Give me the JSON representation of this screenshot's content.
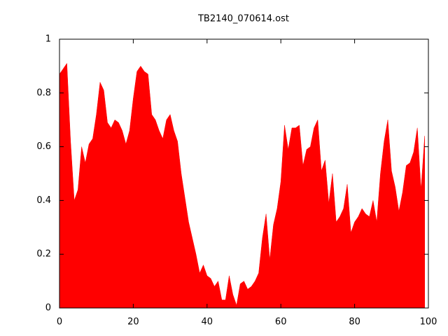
{
  "chart_data": {
    "type": "area",
    "title": "TB2140_070614.ost",
    "color": "#ff0000",
    "x": [
      0,
      1,
      2,
      3,
      4,
      5,
      6,
      7,
      8,
      9,
      10,
      11,
      12,
      13,
      14,
      15,
      16,
      17,
      18,
      19,
      20,
      21,
      22,
      23,
      24,
      25,
      26,
      27,
      28,
      29,
      30,
      31,
      32,
      33,
      34,
      35,
      36,
      37,
      38,
      39,
      40,
      41,
      42,
      43,
      44,
      45,
      46,
      47,
      48,
      49,
      50,
      51,
      52,
      53,
      54,
      55,
      56,
      57,
      58,
      59,
      60,
      61,
      62,
      63,
      64,
      65,
      66,
      67,
      68,
      69,
      70,
      71,
      72,
      73,
      74,
      75,
      76,
      77,
      78,
      79,
      80,
      81,
      82,
      83,
      84,
      85,
      86,
      87,
      88,
      89,
      90,
      91,
      92,
      93,
      94,
      95,
      96,
      97,
      98,
      99
    ],
    "values": [
      0.87,
      0.89,
      0.91,
      0.62,
      0.4,
      0.44,
      0.6,
      0.54,
      0.61,
      0.63,
      0.72,
      0.84,
      0.81,
      0.69,
      0.67,
      0.7,
      0.69,
      0.66,
      0.61,
      0.66,
      0.78,
      0.88,
      0.9,
      0.88,
      0.87,
      0.72,
      0.7,
      0.66,
      0.63,
      0.7,
      0.72,
      0.66,
      0.62,
      0.5,
      0.41,
      0.32,
      0.26,
      0.2,
      0.13,
      0.16,
      0.12,
      0.11,
      0.08,
      0.1,
      0.03,
      0.03,
      0.12,
      0.05,
      0.01,
      0.09,
      0.1,
      0.07,
      0.08,
      0.1,
      0.13,
      0.26,
      0.35,
      0.18,
      0.31,
      0.37,
      0.47,
      0.68,
      0.59,
      0.67,
      0.67,
      0.68,
      0.53,
      0.59,
      0.6,
      0.67,
      0.7,
      0.51,
      0.55,
      0.39,
      0.5,
      0.32,
      0.34,
      0.37,
      0.46,
      0.28,
      0.32,
      0.34,
      0.37,
      0.35,
      0.34,
      0.4,
      0.32,
      0.5,
      0.62,
      0.7,
      0.51,
      0.45,
      0.36,
      0.43,
      0.53,
      0.54,
      0.58,
      0.67,
      0.44,
      0.64
    ],
    "xlim": [
      0,
      100
    ],
    "xticks": [
      0,
      20,
      40,
      60,
      80,
      100
    ],
    "ylim": [
      0,
      1
    ],
    "yticks": [
      0,
      0.2,
      0.4,
      0.6,
      0.8,
      1
    ]
  }
}
